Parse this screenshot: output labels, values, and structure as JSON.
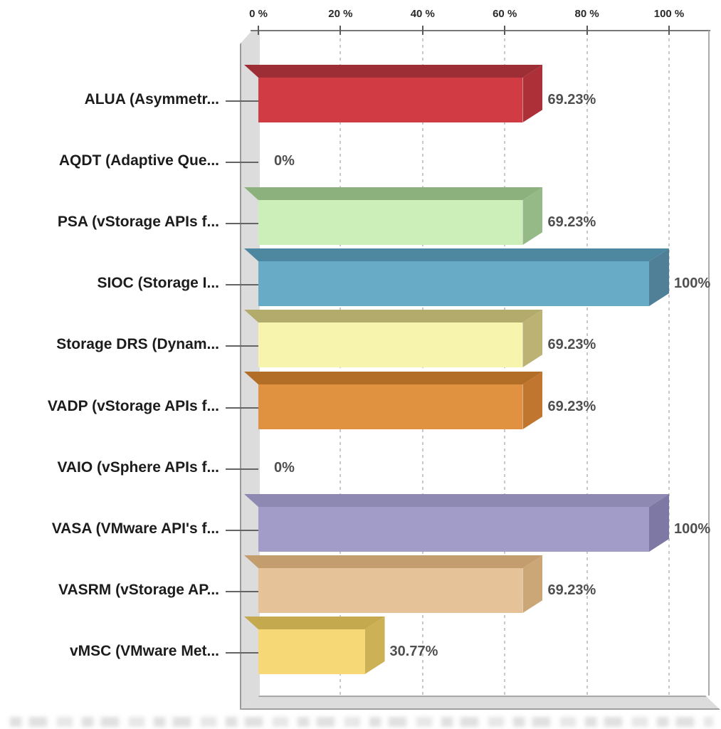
{
  "chart_data": {
    "type": "bar",
    "orientation": "horizontal",
    "style": "3d-horizontal-bars",
    "title": "",
    "categories": [
      "ALUA (Asymmetr...",
      "AQDT (Adaptive Que...",
      "PSA (vStorage APIs f...",
      "SIOC (Storage I...",
      "Storage DRS (Dynam...",
      "VADP (vStorage APIs f...",
      "VAIO (vSphere APIs f...",
      "VASA (VMware API's f...",
      "VASRM (vStorage AP...",
      "vMSC (VMware Met..."
    ],
    "values": [
      69.23,
      0,
      69.23,
      100,
      69.23,
      69.23,
      0,
      100,
      69.23,
      30.77
    ],
    "value_labels": [
      "69.23%",
      "0%",
      "69.23%",
      "100%",
      "69.23%",
      "69.23%",
      "0%",
      "100%",
      "69.23%",
      "30.77%"
    ],
    "x_axis": {
      "position": "top",
      "tick_labels": [
        "0 %",
        "20 %",
        "40 %",
        "60 %",
        "80 %",
        "100 %"
      ],
      "tick_values": [
        0,
        20,
        40,
        60,
        80,
        100
      ],
      "range": [
        0,
        110
      ],
      "gridlines": "dotted-vertical"
    },
    "legend": "none",
    "bar_styles": [
      {
        "front": "#d13b44",
        "top": "#9e2e35",
        "side": "#ad3039"
      },
      null,
      {
        "front": "#cceeb8",
        "top": "#8cb17d",
        "side": "#96ba87"
      },
      {
        "front": "#68abc6",
        "top": "#4e87a0",
        "side": "#4f8098"
      },
      {
        "front": "#f7f4ae",
        "top": "#b3ab6c",
        "side": "#bbb274"
      },
      {
        "front": "#e09240",
        "top": "#b26d26",
        "side": "#c0762f"
      },
      null,
      {
        "front": "#a19dc8",
        "top": "#8d89b2",
        "side": "#7e79a4"
      },
      {
        "front": "#e6c299",
        "top": "#c39d6e",
        "side": "#cba677"
      },
      {
        "front": "#f6d876",
        "top": "#c5a94f",
        "side": "#ccb157"
      }
    ],
    "frame_colors": {
      "wall": "#dcdcdc",
      "wall_edge": "#9a9a9a",
      "floor": "#d9d9d9",
      "axis_line": "#787878",
      "grid": "#c9c9c9",
      "category_label": "#1c1c1c",
      "value_label": "#4f4f4f",
      "tick_label": "#2a2a2a"
    }
  }
}
